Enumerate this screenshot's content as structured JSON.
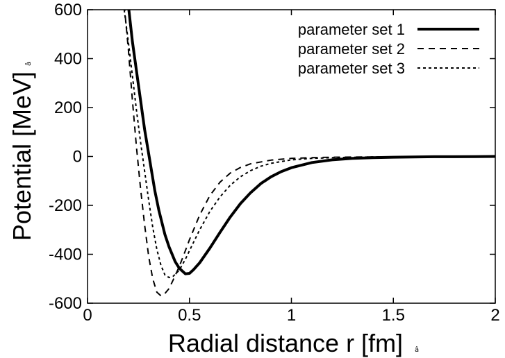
{
  "chart_data": {
    "type": "line",
    "xlabel": "Radial distance r [fm]",
    "ylabel": "Potential [MeV]",
    "axis_suffix_glyph": "â",
    "xlim": [
      0,
      2
    ],
    "ylim": [
      -600,
      600
    ],
    "x_ticks": [
      "0",
      "0.5",
      "1",
      "1.5",
      "2"
    ],
    "x_tick_values": [
      0,
      0.5,
      1,
      1.5,
      2
    ],
    "y_ticks": [
      "600",
      "400",
      "200",
      "0",
      "-200",
      "-400",
      "-600"
    ],
    "y_tick_values": [
      600,
      400,
      200,
      0,
      -200,
      -400,
      -600
    ],
    "grid": false,
    "legend_position": "top-right",
    "series": [
      {
        "name": "parameter set 1",
        "style": "solid",
        "color": "#000000",
        "x": [
          0.2,
          0.22,
          0.25,
          0.28,
          0.3,
          0.33,
          0.35,
          0.38,
          0.4,
          0.43,
          0.45,
          0.48,
          0.5,
          0.52,
          0.55,
          0.6,
          0.65,
          0.7,
          0.75,
          0.8,
          0.85,
          0.9,
          0.95,
          1.0,
          1.1,
          1.2,
          1.3,
          1.4,
          1.5,
          1.6,
          1.7,
          1.8,
          1.9,
          2.0
        ],
        "y": [
          620,
          470,
          290,
          110,
          10,
          -140,
          -220,
          -320,
          -370,
          -430,
          -457,
          -480,
          -478,
          -463,
          -435,
          -375,
          -310,
          -248,
          -193,
          -148,
          -111,
          -83,
          -62,
          -46,
          -25,
          -14,
          -8,
          -5,
          -3,
          -2,
          -1,
          -1,
          -0.5,
          0
        ]
      },
      {
        "name": "parameter set 2",
        "style": "dashed",
        "color": "#000000",
        "x": [
          0.18,
          0.2,
          0.22,
          0.24,
          0.26,
          0.28,
          0.3,
          0.32,
          0.34,
          0.36,
          0.38,
          0.4,
          0.42,
          0.45,
          0.48,
          0.5,
          0.55,
          0.6,
          0.65,
          0.7,
          0.75,
          0.8,
          0.9,
          1.0,
          1.1,
          1.2,
          1.4,
          1.6,
          1.8,
          2.0
        ],
        "y": [
          620,
          440,
          230,
          40,
          -130,
          -280,
          -410,
          -500,
          -555,
          -570,
          -560,
          -540,
          -505,
          -450,
          -385,
          -340,
          -240,
          -160,
          -105,
          -68,
          -45,
          -30,
          -15,
          -8,
          -5,
          -3,
          -2,
          -1,
          -0.5,
          0
        ]
      },
      {
        "name": "parameter set 3",
        "style": "dotted",
        "color": "#000000",
        "x": [
          0.18,
          0.2,
          0.22,
          0.24,
          0.26,
          0.28,
          0.3,
          0.32,
          0.34,
          0.36,
          0.38,
          0.4,
          0.42,
          0.45,
          0.48,
          0.5,
          0.55,
          0.6,
          0.65,
          0.7,
          0.75,
          0.8,
          0.85,
          0.9,
          1.0,
          1.1,
          1.2,
          1.4,
          1.6,
          1.8,
          2.0
        ],
        "y": [
          600,
          470,
          330,
          190,
          60,
          -60,
          -180,
          -290,
          -380,
          -445,
          -485,
          -495,
          -490,
          -465,
          -420,
          -385,
          -300,
          -225,
          -165,
          -118,
          -83,
          -58,
          -40,
          -28,
          -14,
          -8,
          -5,
          -2,
          -1,
          -0.5,
          0
        ]
      }
    ]
  }
}
